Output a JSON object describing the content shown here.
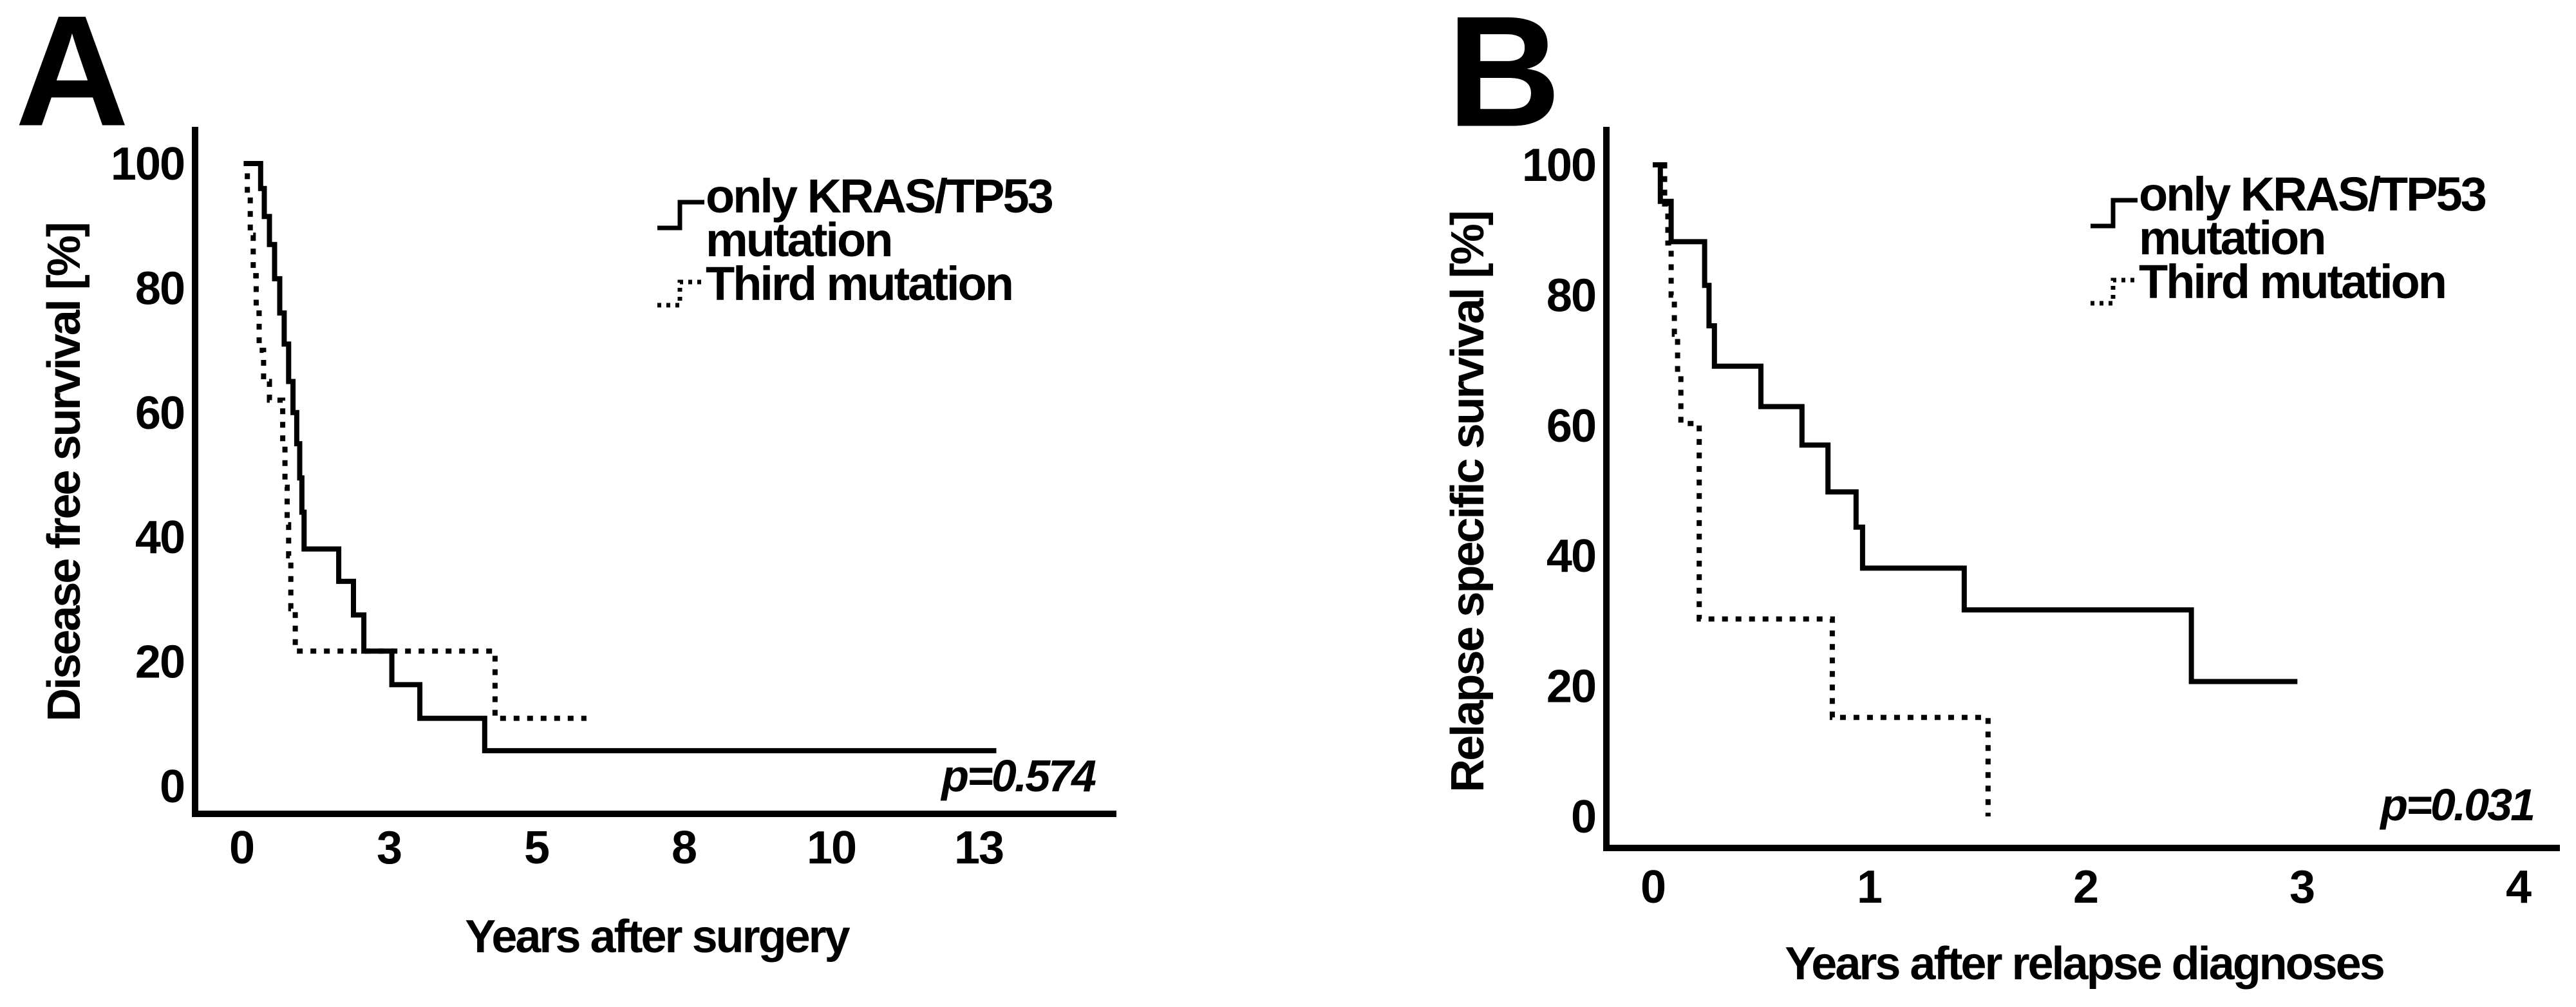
{
  "figure_background": "#ffffff",
  "ink_color": "#000000",
  "panels": [
    {
      "label": "A",
      "y_axis_title": "Disease free survival [%]",
      "x_axis_title": "Years after surgery",
      "p_value": "p=0.574",
      "y_tick_labels": [
        "100",
        "80",
        "60",
        "40",
        "20",
        "0"
      ],
      "x_tick_labels": [
        "0",
        "3",
        "5",
        "8",
        "10",
        "13"
      ],
      "legend": {
        "line1": "only KRAS/TP53",
        "line2": "mutation",
        "line3": "Third mutation"
      }
    },
    {
      "label": "B",
      "y_axis_title": "Relapse specific survival [%]",
      "x_axis_title": "Years after relapse diagnoses",
      "p_value": "p=0.031",
      "y_tick_labels": [
        "100",
        "80",
        "60",
        "40",
        "20",
        "0"
      ],
      "x_tick_labels": [
        "0",
        "1",
        "2",
        "3",
        "4"
      ],
      "legend": {
        "line1": "only KRAS/TP53",
        "line2": "mutation",
        "line3": "Third mutation"
      }
    }
  ],
  "chart_data": [
    {
      "type": "line",
      "step": true,
      "title": "A",
      "xlabel": "Years after surgery",
      "ylabel": "Disease free survival [%]",
      "ylim": [
        0,
        100
      ],
      "grid": false,
      "legend_position": "top-right",
      "p_value": "p=0.574",
      "y_tick_labels": [
        "100",
        "80",
        "60",
        "40",
        "20",
        "0"
      ],
      "x_tick_labels": [
        "0",
        "3",
        "5",
        "8",
        "10",
        "13"
      ],
      "x_axis_note": "tick labels are evenly spaced; series x values are in tick-index units (0 = tick '0', 1 = tick '3', 2 = tick '5', 3 = tick '8', 4 = tick '10', 5 = tick '13')",
      "series": [
        {
          "name": "only KRAS/TP53 mutation",
          "style": "solid",
          "points": [
            [
              0.03,
              100
            ],
            [
              0.13,
              100
            ],
            [
              0.13,
              96
            ],
            [
              0.155,
              96
            ],
            [
              0.155,
              91.5
            ],
            [
              0.19,
              91.5
            ],
            [
              0.19,
              87
            ],
            [
              0.225,
              87
            ],
            [
              0.225,
              81.5
            ],
            [
              0.26,
              81.5
            ],
            [
              0.26,
              76
            ],
            [
              0.29,
              76
            ],
            [
              0.29,
              71
            ],
            [
              0.32,
              71
            ],
            [
              0.32,
              65
            ],
            [
              0.35,
              65
            ],
            [
              0.35,
              60
            ],
            [
              0.375,
              60
            ],
            [
              0.375,
              55
            ],
            [
              0.395,
              55
            ],
            [
              0.395,
              49.5
            ],
            [
              0.41,
              49.5
            ],
            [
              0.41,
              44
            ],
            [
              0.425,
              44
            ],
            [
              0.425,
              38.1
            ],
            [
              0.66,
              38.1
            ],
            [
              0.66,
              32.9
            ],
            [
              0.76,
              32.9
            ],
            [
              0.76,
              27.5
            ],
            [
              0.83,
              27.5
            ],
            [
              0.83,
              21.7
            ],
            [
              1.02,
              21.7
            ],
            [
              1.02,
              16.3
            ],
            [
              1.21,
              16.3
            ],
            [
              1.21,
              10.9
            ],
            [
              1.65,
              10.9
            ],
            [
              1.65,
              5.7
            ],
            [
              5.12,
              5.7
            ]
          ]
        },
        {
          "name": "Third mutation",
          "style": "dotted",
          "points": [
            [
              0.015,
              100
            ],
            [
              0.04,
              100
            ],
            [
              0.04,
              95
            ],
            [
              0.06,
              95
            ],
            [
              0.06,
              88.5
            ],
            [
              0.08,
              88.5
            ],
            [
              0.08,
              82
            ],
            [
              0.1,
              82
            ],
            [
              0.1,
              76
            ],
            [
              0.12,
              76
            ],
            [
              0.12,
              70
            ],
            [
              0.15,
              70
            ],
            [
              0.15,
              65
            ],
            [
              0.19,
              65
            ],
            [
              0.19,
              62
            ],
            [
              0.28,
              62
            ],
            [
              0.28,
              55
            ],
            [
              0.295,
              55
            ],
            [
              0.295,
              48
            ],
            [
              0.31,
              48
            ],
            [
              0.31,
              42
            ],
            [
              0.32,
              42
            ],
            [
              0.32,
              37
            ],
            [
              0.335,
              37
            ],
            [
              0.335,
              28.5
            ],
            [
              0.365,
              28.5
            ],
            [
              0.365,
              21.7
            ],
            [
              1.72,
              21.7
            ],
            [
              1.72,
              10.9
            ],
            [
              2.34,
              10.9
            ]
          ]
        }
      ]
    },
    {
      "type": "line",
      "step": true,
      "title": "B",
      "xlabel": "Years after relapse diagnoses",
      "ylabel": "Relapse specific survival [%]",
      "ylim": [
        0,
        100
      ],
      "xlim": [
        0,
        4.2
      ],
      "grid": false,
      "legend_position": "top-right",
      "p_value": "p=0.031",
      "y_tick_labels": [
        "100",
        "80",
        "60",
        "40",
        "20",
        "0"
      ],
      "x_tick_labels": [
        "0",
        "1",
        "2",
        "3",
        "4"
      ],
      "x_axis_note": "linear axis; series x values are years",
      "series": [
        {
          "name": "only KRAS/TP53 mutation",
          "style": "solid",
          "points": [
            [
              0,
              100
            ],
            [
              0.035,
              100
            ],
            [
              0.035,
              94.4
            ],
            [
              0.085,
              94.4
            ],
            [
              0.085,
              88.2
            ],
            [
              0.24,
              88.2
            ],
            [
              0.24,
              81.5
            ],
            [
              0.26,
              81.5
            ],
            [
              0.26,
              75.3
            ],
            [
              0.285,
              75.3
            ],
            [
              0.285,
              69.1
            ],
            [
              0.5,
              69.1
            ],
            [
              0.5,
              62.9
            ],
            [
              0.69,
              62.9
            ],
            [
              0.69,
              57
            ],
            [
              0.81,
              57
            ],
            [
              0.81,
              49.8
            ],
            [
              0.94,
              49.8
            ],
            [
              0.94,
              44.4
            ],
            [
              0.97,
              44.4
            ],
            [
              0.97,
              38.1
            ],
            [
              1.44,
              38.1
            ],
            [
              1.44,
              31.7
            ],
            [
              2.49,
              31.7
            ],
            [
              2.49,
              20.7
            ],
            [
              2.98,
              20.7
            ]
          ]
        },
        {
          "name": "Third mutation",
          "style": "dotted",
          "points": [
            [
              0.045,
              100
            ],
            [
              0.055,
              100
            ],
            [
              0.055,
              94
            ],
            [
              0.07,
              94
            ],
            [
              0.07,
              88
            ],
            [
              0.085,
              88
            ],
            [
              0.085,
              80
            ],
            [
              0.1,
              80
            ],
            [
              0.1,
              74
            ],
            [
              0.115,
              74
            ],
            [
              0.115,
              68
            ],
            [
              0.13,
              68
            ],
            [
              0.13,
              60.3
            ],
            [
              0.215,
              60.3
            ],
            [
              0.215,
              30.3
            ],
            [
              0.83,
              30.3
            ],
            [
              0.83,
              15.2
            ],
            [
              1.55,
              15.2
            ],
            [
              1.55,
              0
            ]
          ]
        }
      ]
    }
  ]
}
